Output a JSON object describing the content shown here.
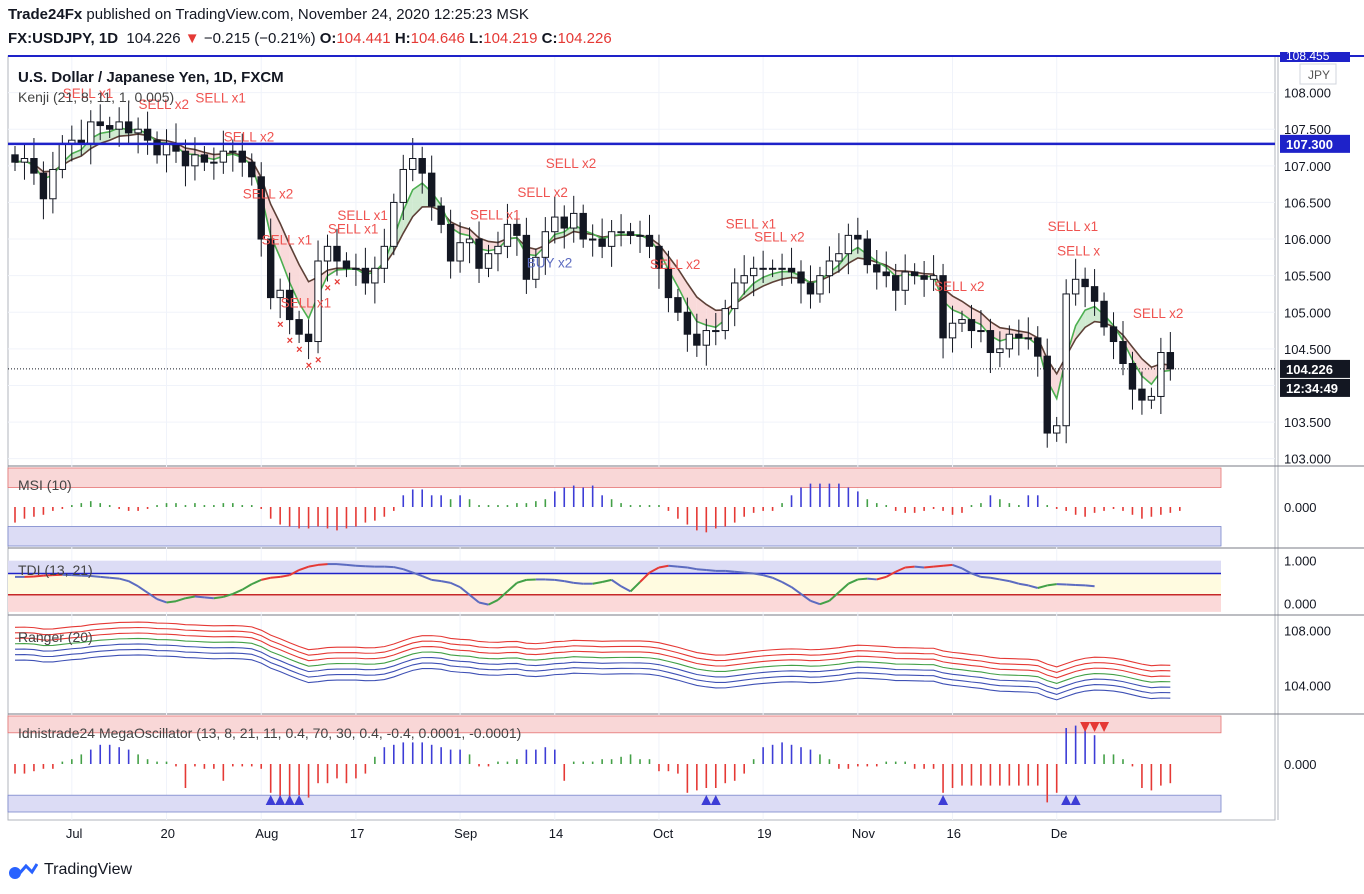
{
  "header": {
    "publisher": "Trade24Fx",
    "published_text": "published on TradingView.com, November 24, 2020 12:25:23 MSK",
    "symbol": "FX:USDJPY, 1D",
    "last": "104.226",
    "change": "−0.215 (−0.21%)",
    "o_label": "O:",
    "o_value": "104.441",
    "h_label": "H:",
    "h_value": "104.646",
    "l_label": "L:",
    "l_value": "104.219",
    "c_label": "C:",
    "c_value": "104.226"
  },
  "footer": {
    "brand": "TradingView"
  },
  "chart_data": [
    {
      "type": "candlestick",
      "title": "U.S. Dollar / Japanese Yen, 1D, FXCM",
      "indicator_label": "Kenji (21, 8, 11, 1, 0.005)",
      "currency": "JPY",
      "ylim": [
        102.9,
        108.5
      ],
      "y_ticks": [
        103.0,
        103.5,
        104.0,
        104.5,
        105.0,
        105.5,
        106.0,
        106.5,
        107.0,
        107.5,
        108.0
      ],
      "y_tick_labels": [
        "103.000",
        "103.500",
        "104.000",
        "104.500",
        "105.000",
        "105.500",
        "106.000",
        "106.500",
        "107.000",
        "107.500",
        "108.000"
      ],
      "horizontal_lines": [
        {
          "value": 107.3,
          "label": "107.300",
          "color": "#1e22c9"
        }
      ],
      "top_line": {
        "value": 108.455,
        "label": "108.455"
      },
      "last_price": {
        "value": 104.226,
        "label": "104.226"
      },
      "countdown": "12:34:49",
      "x_labels": [
        {
          "label": "Jul",
          "i": 6
        },
        {
          "label": "20",
          "i": 16
        },
        {
          "label": "Aug",
          "i": 26
        },
        {
          "label": "17",
          "i": 36
        },
        {
          "label": "Sep",
          "i": 47
        },
        {
          "label": "14",
          "i": 57
        },
        {
          "label": "Oct",
          "i": 68
        },
        {
          "label": "19",
          "i": 79
        },
        {
          "label": "Nov",
          "i": 89
        },
        {
          "label": "16",
          "i": 99
        },
        {
          "label": "De",
          "i": 110
        }
      ],
      "closes": [
        107.05,
        107.1,
        106.9,
        106.55,
        106.95,
        107.3,
        107.35,
        107.3,
        107.6,
        107.55,
        107.5,
        107.6,
        107.45,
        107.5,
        107.35,
        107.15,
        107.3,
        107.2,
        107.0,
        107.15,
        107.05,
        107.05,
        107.2,
        107.2,
        107.05,
        106.85,
        106.0,
        105.2,
        105.3,
        104.9,
        104.7,
        104.6,
        105.7,
        105.9,
        105.7,
        105.6,
        105.6,
        105.4,
        105.6,
        105.9,
        106.5,
        106.95,
        107.1,
        106.9,
        106.45,
        106.2,
        105.7,
        105.95,
        106.0,
        105.6,
        105.8,
        105.9,
        106.2,
        106.05,
        105.45,
        105.75,
        106.1,
        106.3,
        106.15,
        106.35,
        106.0,
        106.0,
        105.9,
        106.1,
        106.1,
        106.05,
        106.05,
        105.9,
        105.6,
        105.2,
        105.0,
        104.7,
        104.55,
        104.75,
        104.75,
        105.05,
        105.4,
        105.5,
        105.6,
        105.6,
        105.6,
        105.6,
        105.55,
        105.4,
        105.25,
        105.5,
        105.7,
        105.8,
        106.05,
        106.0,
        105.65,
        105.55,
        105.5,
        105.3,
        105.55,
        105.5,
        105.45,
        105.5,
        104.65,
        104.85,
        104.9,
        104.75,
        104.75,
        104.45,
        104.5,
        104.7,
        104.65,
        104.65,
        104.4,
        103.35,
        103.45,
        105.25,
        105.45,
        105.35,
        105.15,
        104.8,
        104.6,
        104.3,
        103.95,
        103.8,
        103.85,
        104.45,
        104.226
      ],
      "series_overlays": [
        "Kenji fast line (green)",
        "Kenji slow line (dark)",
        "red/green cloud fill"
      ],
      "annotations": [
        {
          "text": "SELL x1",
          "i": 8
        },
        {
          "text": "SELL x2",
          "i": 16
        },
        {
          "text": "SELL x1",
          "i": 22
        },
        {
          "text": "SELL x2",
          "i": 25
        },
        {
          "text": "SELL x2",
          "i": 27
        },
        {
          "text": "SELL x1",
          "i": 29
        },
        {
          "text": "SELL x1",
          "i": 31
        },
        {
          "text": "SELL x1",
          "i": 36
        },
        {
          "text": "SELL x1",
          "i": 37
        },
        {
          "text": "SELL x1",
          "i": 51
        },
        {
          "text": "SELL x2",
          "i": 56
        },
        {
          "text": "SELL x2",
          "i": 59
        },
        {
          "text": "BUY x2",
          "i": 57
        },
        {
          "text": "SELL x2",
          "i": 70
        },
        {
          "text": "SELL x1",
          "i": 78
        },
        {
          "text": "SELL x2",
          "i": 81
        },
        {
          "text": "SELL x2",
          "i": 100
        },
        {
          "text": "SELL x1",
          "i": 112
        },
        {
          "text": "SELL x",
          "i": 113
        },
        {
          "text": "SELL x2",
          "i": 121
        }
      ]
    },
    {
      "type": "histogram",
      "title": "MSI (10)",
      "ylim": [
        -1.0,
        1.0
      ],
      "y_tick_labels": [
        "0.000"
      ],
      "values": [
        -0.4,
        -0.3,
        -0.25,
        -0.2,
        -0.1,
        -0.05,
        0.05,
        0.1,
        0.15,
        0.1,
        0.05,
        -0.05,
        -0.1,
        -0.1,
        -0.05,
        0.05,
        0.1,
        0.1,
        0.05,
        0.1,
        0.05,
        0.05,
        0.1,
        0.1,
        0.05,
        0.05,
        -0.05,
        -0.3,
        -0.45,
        -0.5,
        -0.55,
        -0.55,
        -0.5,
        -0.55,
        -0.6,
        -0.55,
        -0.5,
        -0.4,
        -0.35,
        -0.25,
        -0.1,
        0.3,
        0.45,
        0.45,
        0.3,
        0.3,
        0.2,
        0.3,
        0.2,
        0.05,
        0.05,
        0.05,
        0.05,
        0.1,
        0.1,
        0.15,
        0.2,
        0.4,
        0.5,
        0.55,
        0.5,
        0.55,
        0.3,
        0.2,
        0.1,
        0.05,
        0.05,
        0.05,
        0.05,
        -0.1,
        -0.3,
        -0.45,
        -0.6,
        -0.65,
        -0.55,
        -0.5,
        -0.4,
        -0.25,
        -0.15,
        -0.1,
        -0.1,
        0.1,
        0.3,
        0.5,
        0.6,
        0.6,
        0.6,
        0.6,
        0.5,
        0.4,
        0.2,
        0.1,
        0.05,
        -0.1,
        -0.15,
        -0.15,
        -0.1,
        -0.05,
        -0.1,
        -0.2,
        -0.15,
        0.05,
        0.1,
        0.3,
        0.2,
        0.1,
        0.05,
        0.3,
        0.3,
        0.05,
        -0.05,
        -0.1,
        -0.2,
        -0.25,
        -0.15,
        -0.1,
        -0.05,
        -0.1,
        -0.2,
        -0.3,
        -0.25,
        -0.2,
        -0.15,
        -0.1
      ],
      "upper_band": [
        0.5,
        1.0
      ],
      "lower_band": [
        -1.0,
        -0.5
      ]
    },
    {
      "type": "line",
      "title": "TDI (13, 21)",
      "ylim": [
        -0.25,
        1.25
      ],
      "y_tick_labels": [
        "1.000",
        "0.000"
      ],
      "reference_lines": [
        0.7,
        0.2
      ],
      "values": [
        0.62,
        0.62,
        0.63,
        0.65,
        0.66,
        0.67,
        0.66,
        0.65,
        0.64,
        0.62,
        0.6,
        0.58,
        0.52,
        0.4,
        0.25,
        0.1,
        0.02,
        0.05,
        0.12,
        0.16,
        0.14,
        0.12,
        0.15,
        0.22,
        0.32,
        0.45,
        0.55,
        0.6,
        0.62,
        0.66,
        0.78,
        0.86,
        0.9,
        0.92,
        0.92,
        0.9,
        0.88,
        0.87,
        0.86,
        0.86,
        0.85,
        0.8,
        0.72,
        0.64,
        0.55,
        0.52,
        0.48,
        0.38,
        0.2,
        0.02,
        -0.03,
        0.08,
        0.28,
        0.48,
        0.55,
        0.56,
        0.56,
        0.55,
        0.52,
        0.48,
        0.46,
        0.46,
        0.5,
        0.55,
        0.4,
        0.28,
        0.5,
        0.72,
        0.84,
        0.88,
        0.86,
        0.84,
        0.8,
        0.78,
        0.76,
        0.76,
        0.74,
        0.72,
        0.7,
        0.66,
        0.6,
        0.5,
        0.38,
        0.22,
        0.06,
        -0.02,
        0.06,
        0.26,
        0.46,
        0.56,
        0.58,
        0.56,
        0.62,
        0.74,
        0.84,
        0.86,
        0.84,
        0.86,
        0.88,
        0.9,
        0.82,
        0.7,
        0.62,
        0.6,
        0.56,
        0.52,
        0.46,
        0.42,
        0.36,
        0.42,
        0.45,
        0.44,
        0.43,
        0.42,
        0.4
      ]
    },
    {
      "type": "line",
      "title": "Ranger (20)",
      "ylim": [
        102.0,
        109.0
      ],
      "y_tick_labels": [
        "108.000",
        "104.000"
      ],
      "series": [
        {
          "name": "upper3",
          "offset": 1.5,
          "color": "#e53935"
        },
        {
          "name": "upper2",
          "offset": 1.0,
          "color": "#e53935"
        },
        {
          "name": "upper1",
          "offset": 0.5,
          "color": "#e53935"
        },
        {
          "name": "mid",
          "offset": 0.0,
          "color": "#43a047"
        },
        {
          "name": "lower1",
          "offset": -0.5,
          "color": "#3f51b5"
        },
        {
          "name": "lower2",
          "offset": -1.0,
          "color": "#3f51b5"
        },
        {
          "name": "lower3",
          "offset": -1.5,
          "color": "#3f51b5"
        }
      ]
    },
    {
      "type": "histogram",
      "title": "Idnistrade24 MegaOscillator (13, 8, 21, 11, 0.4, 70, 30, 0.4, -0.4, 0.0001, -0.0001)",
      "ylim": [
        -1.0,
        1.0
      ],
      "y_tick_labels": [
        "0.000"
      ],
      "values": [
        -0.2,
        -0.2,
        -0.15,
        -0.1,
        -0.1,
        0.05,
        0.1,
        0.2,
        0.3,
        0.4,
        0.4,
        0.35,
        0.3,
        0.2,
        0.1,
        0.05,
        0.05,
        -0.05,
        -0.5,
        -0.05,
        -0.1,
        -0.1,
        -0.35,
        -0.05,
        -0.05,
        -0.05,
        -0.1,
        -0.6,
        -0.7,
        -0.7,
        -0.65,
        -0.7,
        -0.4,
        -0.4,
        -0.3,
        -0.4,
        -0.3,
        -0.2,
        0.15,
        0.35,
        0.4,
        0.45,
        0.45,
        0.45,
        0.4,
        0.35,
        0.3,
        0.3,
        0.2,
        -0.05,
        -0.05,
        0.05,
        0.05,
        0.1,
        0.3,
        0.3,
        0.35,
        0.3,
        -0.35,
        0.05,
        0.05,
        0.05,
        0.1,
        0.1,
        0.15,
        0.2,
        0.1,
        0.1,
        -0.15,
        -0.15,
        -0.2,
        -0.6,
        -0.55,
        -0.5,
        -0.5,
        -0.4,
        -0.35,
        -0.2,
        0.1,
        0.35,
        0.4,
        0.45,
        0.4,
        0.35,
        0.3,
        0.2,
        0.1,
        -0.1,
        -0.1,
        -0.05,
        -0.05,
        -0.05,
        0.05,
        0.05,
        0.05,
        -0.1,
        -0.1,
        -0.1,
        -0.6,
        -0.5,
        -0.45,
        -0.45,
        -0.45,
        -0.45,
        -0.45,
        -0.45,
        -0.45,
        -0.45,
        -0.45,
        -0.8,
        -0.6,
        0.75,
        0.8,
        0.75,
        0.6,
        0.2,
        0.2,
        0.1,
        -0.05,
        -0.5,
        -0.55,
        -0.45,
        -0.4
      ],
      "upper_band": [
        0.65,
        1.0
      ],
      "lower_band": [
        -1.0,
        -0.65
      ],
      "markers": [
        {
          "i": 27,
          "dir": "up",
          "color": "#3d3dd6"
        },
        {
          "i": 28,
          "dir": "up",
          "color": "#3d3dd6"
        },
        {
          "i": 29,
          "dir": "up",
          "color": "#3d3dd6"
        },
        {
          "i": 30,
          "dir": "up",
          "color": "#3d3dd6"
        },
        {
          "i": 73,
          "dir": "up",
          "color": "#3d3dd6"
        },
        {
          "i": 74,
          "dir": "up",
          "color": "#3d3dd6"
        },
        {
          "i": 98,
          "dir": "up",
          "color": "#3d3dd6"
        },
        {
          "i": 111,
          "dir": "up",
          "color": "#3d3dd6"
        },
        {
          "i": 112,
          "dir": "up",
          "color": "#3d3dd6"
        },
        {
          "i": 113,
          "dir": "down",
          "color": "#e53935"
        },
        {
          "i": 114,
          "dir": "down",
          "color": "#e53935"
        },
        {
          "i": 115,
          "dir": "down",
          "color": "#e53935"
        }
      ]
    }
  ]
}
